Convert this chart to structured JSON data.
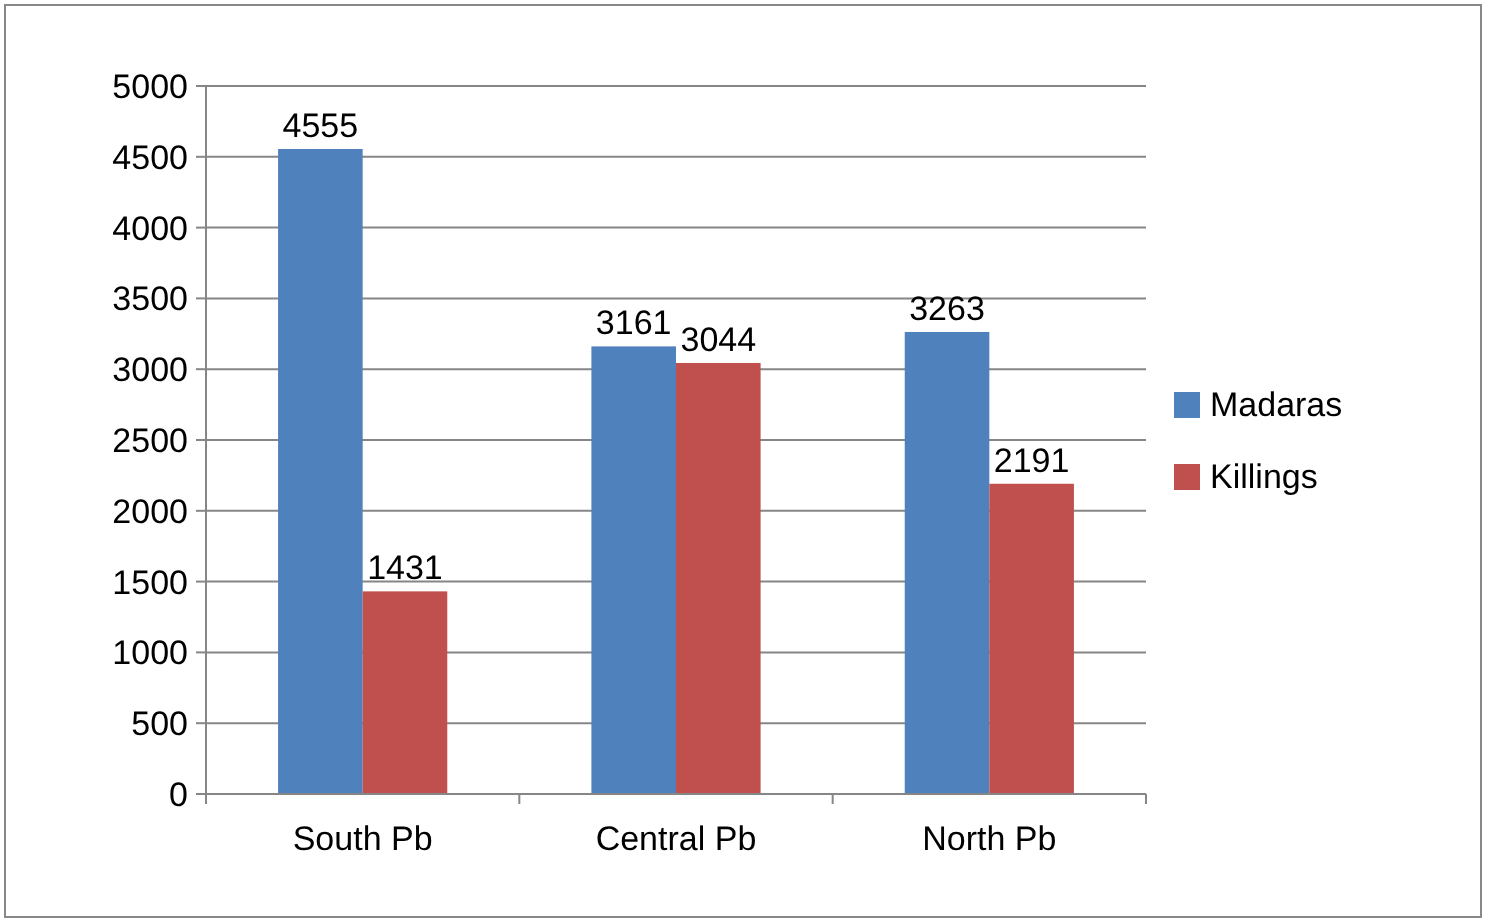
{
  "chart_data": {
    "type": "bar",
    "categories": [
      "South Pb",
      "Central Pb",
      "North Pb"
    ],
    "series": [
      {
        "name": "Madaras",
        "color": "#4f81bd",
        "values": [
          4555,
          3161,
          3263
        ]
      },
      {
        "name": "Killings",
        "color": "#c0504d",
        "values": [
          1431,
          3044,
          2191
        ]
      }
    ],
    "ylim": [
      0,
      5000
    ],
    "yticks": [
      0,
      500,
      1000,
      1500,
      2000,
      2500,
      3000,
      3500,
      4000,
      4500,
      5000
    ],
    "grid": "y",
    "legend": "right",
    "data_labels": true
  }
}
